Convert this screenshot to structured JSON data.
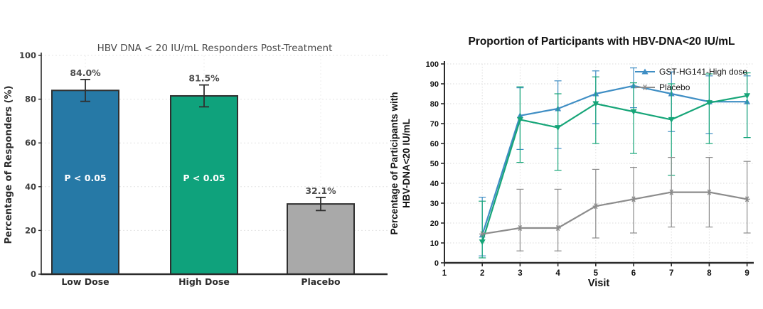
{
  "page": {
    "background": "#ffffff"
  },
  "chart_data": [
    {
      "type": "bar",
      "title": "HBV DNA < 20 IU/mL Responders Post-Treatment",
      "ylabel": "Percentage of Responders (%)",
      "ylim": [
        0,
        100
      ],
      "yticks": [
        0,
        20,
        40,
        60,
        80,
        100
      ],
      "grid": true,
      "categories": [
        "Low Dose",
        "High Dose",
        "Placebo"
      ],
      "values": [
        84.0,
        81.5,
        32.1
      ],
      "value_labels": [
        "84.0%",
        "81.5%",
        "32.1%"
      ],
      "error_plus": [
        5,
        5,
        3
      ],
      "error_minus": [
        5,
        5,
        3
      ],
      "bar_annotations": [
        "P < 0.05",
        "P < 0.05",
        ""
      ],
      "bar_colors": [
        "#2679a6",
        "#0fa27c",
        "#a9a9a9"
      ],
      "bar_edge_color": "#2f2f2f",
      "title_color": "#4a4a4a",
      "text_color": "#3d3d3d"
    },
    {
      "type": "line",
      "title": "Proportion of Participants with HBV-DNA<20 IU/mL",
      "xlabel": "Visit",
      "ylabel_lines": [
        "Percentage of Participants with",
        "HBV-DNA<20 IU/mL"
      ],
      "xlim": [
        1,
        9
      ],
      "xticks": [
        1,
        2,
        3,
        4,
        5,
        6,
        7,
        8,
        9
      ],
      "ylim": [
        0,
        100
      ],
      "yticks": [
        0,
        10,
        20,
        30,
        40,
        50,
        60,
        70,
        80,
        90,
        100
      ],
      "grid": true,
      "legend_position": "upper right",
      "x": [
        2,
        3,
        4,
        5,
        6,
        7,
        8,
        9
      ],
      "series": [
        {
          "name": "GST-HG141-High dose",
          "in_legend": true,
          "color": "#3f8ec4",
          "marker": "triangle-up",
          "values": [
            14,
            74,
            77.5,
            85,
            89,
            85,
            81,
            81
          ],
          "err_low": [
            3.5,
            57,
            57.5,
            70,
            78,
            66,
            65,
            63
          ],
          "err_high": [
            33,
            88,
            91.5,
            96.5,
            98,
            96,
            94,
            94
          ]
        },
        {
          "name": "",
          "in_legend": false,
          "color": "#16a578",
          "marker": "triangle-down",
          "values": [
            10.5,
            72,
            68,
            80,
            76,
            72,
            80.5,
            84
          ],
          "err_low": [
            2.5,
            50.5,
            46.5,
            60,
            55,
            44,
            60,
            63
          ],
          "err_high": [
            31,
            88.5,
            85,
            93.5,
            90.5,
            90,
            95,
            95.5
          ]
        },
        {
          "name": "Placebo",
          "in_legend": true,
          "color": "#8c8c8c",
          "marker": "star",
          "values": [
            14.5,
            17.5,
            17.5,
            28.5,
            32,
            35.5,
            35.5,
            32
          ],
          "err_low": [
            14.5,
            6,
            6,
            12.5,
            15,
            18,
            18,
            15
          ],
          "err_high": [
            14.5,
            37,
            37,
            47,
            48,
            53,
            53,
            51
          ]
        }
      ],
      "text_color": "#111111"
    }
  ]
}
